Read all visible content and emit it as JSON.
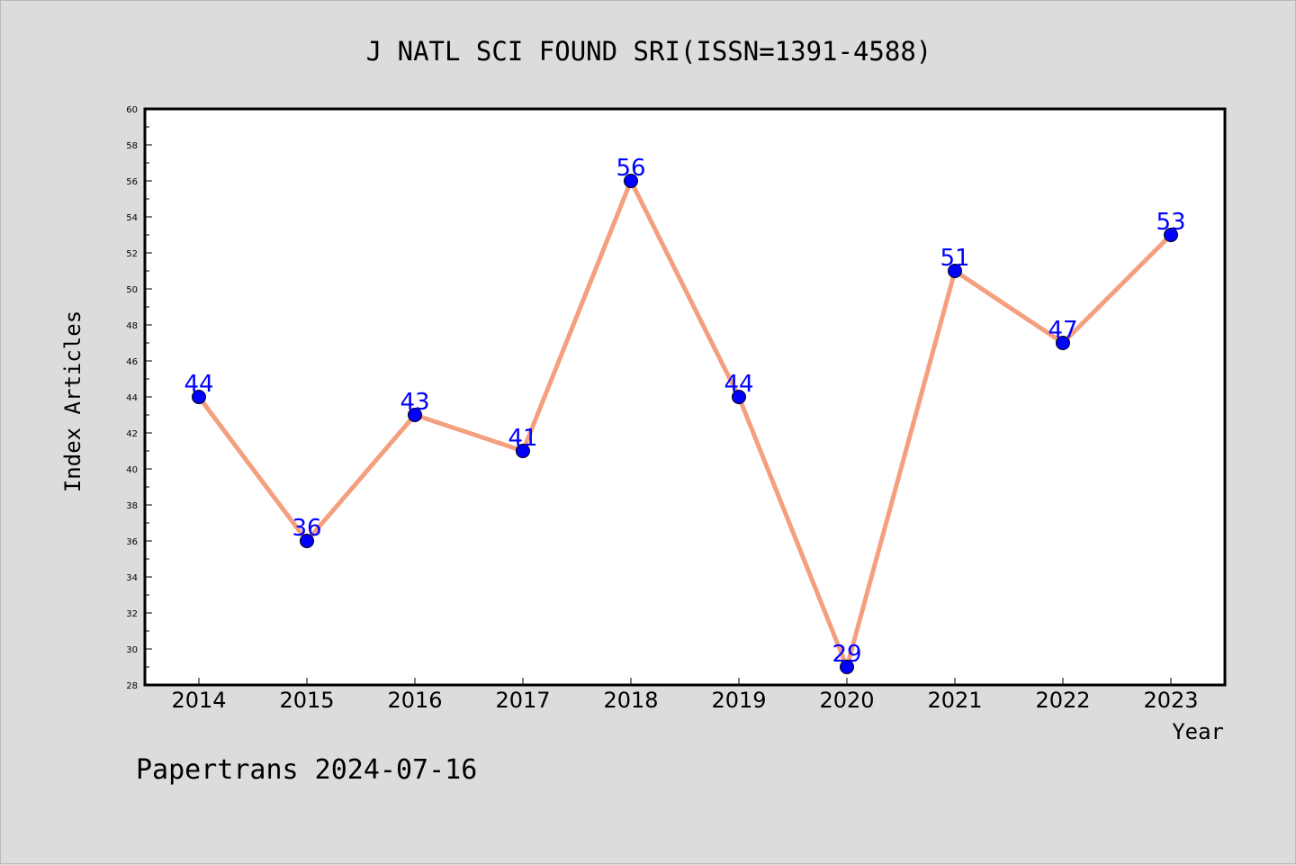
{
  "chart_data": {
    "type": "line",
    "title": "J NATL SCI FOUND SRI(ISSN=1391-4588)",
    "xlabel": "Year",
    "ylabel": "Index Articles",
    "categories": [
      "2014",
      "2015",
      "2016",
      "2017",
      "2018",
      "2019",
      "2020",
      "2021",
      "2022",
      "2023"
    ],
    "values": [
      44,
      36,
      43,
      41,
      56,
      44,
      29,
      51,
      47,
      53
    ],
    "ylim": [
      28,
      60
    ],
    "yticks": [
      28,
      30,
      32,
      34,
      36,
      38,
      40,
      42,
      44,
      46,
      48,
      50,
      52,
      54,
      56,
      58,
      60
    ],
    "grid": false,
    "legend": "none",
    "line_color": "#f4a07e",
    "marker_color": "#0000ff",
    "label_color": "#0000ff"
  },
  "footer": {
    "text": "Papertrans 2024-07-16"
  }
}
